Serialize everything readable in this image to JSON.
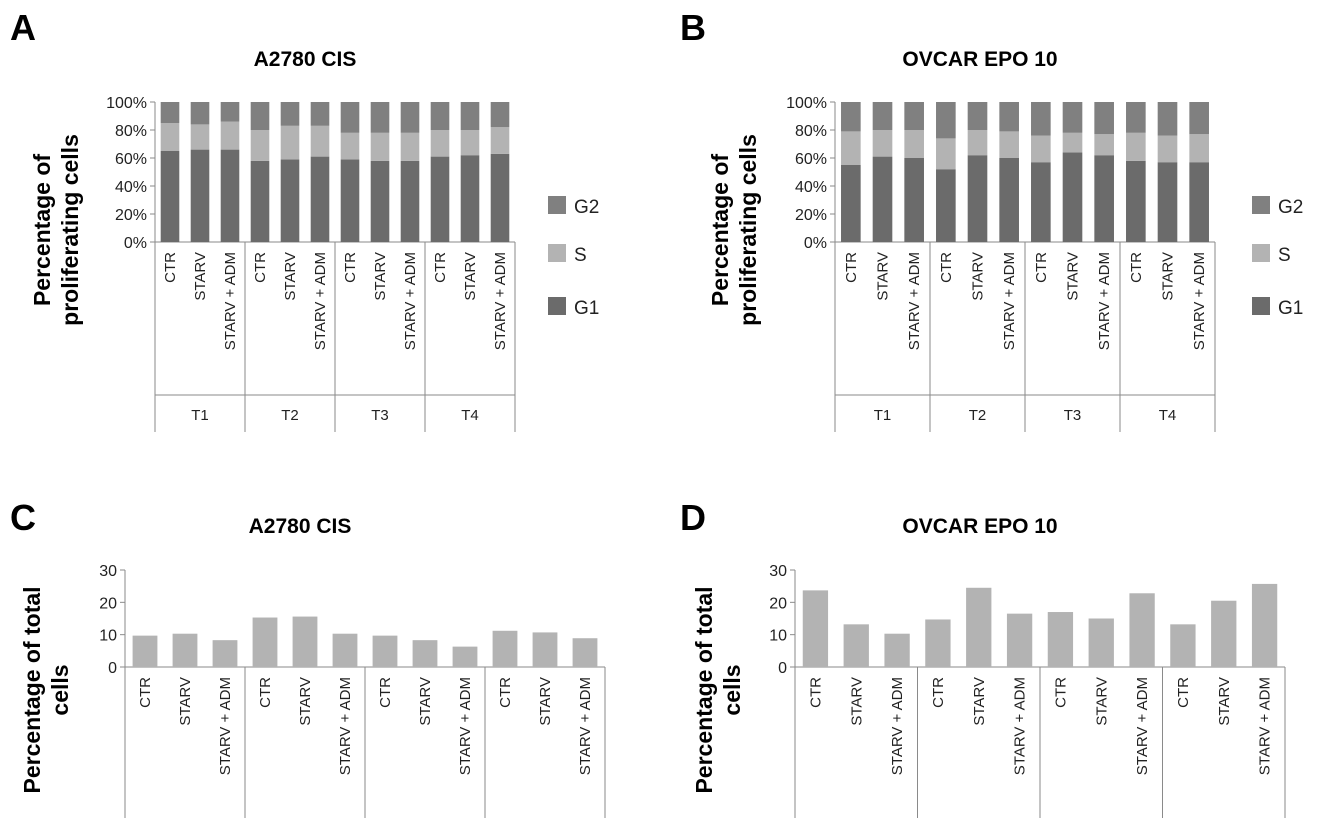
{
  "panels": [
    {
      "letter": "A"
    },
    {
      "letter": "B"
    },
    {
      "letter": "C"
    },
    {
      "letter": "D"
    }
  ],
  "colors": {
    "G1": "#6b6b6b",
    "S": "#b3b3b3",
    "G2": "#808080",
    "bar": "#b3b3b3"
  },
  "chart_data": [
    {
      "type": "bar",
      "stacked": true,
      "title": "A2780 CIS",
      "ylabel": "Percentage of proliferating cells",
      "ylim": [
        0,
        100
      ],
      "yticks": [
        "0%",
        "20%",
        "40%",
        "60%",
        "80%",
        "100%"
      ],
      "groups": [
        "T1",
        "T2",
        "T3",
        "T4"
      ],
      "categories": [
        "CTR",
        "STARV",
        "STARV + ADM",
        "CTR",
        "STARV",
        "STARV + ADM",
        "CTR",
        "STARV",
        "STARV + ADM",
        "CTR",
        "STARV",
        "STARV + ADM"
      ],
      "legend": [
        "G2",
        "S",
        "G1"
      ],
      "legend_position": "right",
      "series": [
        {
          "name": "G1",
          "values": [
            65,
            66,
            66,
            58,
            59,
            61,
            59,
            58,
            58,
            61,
            62,
            63
          ]
        },
        {
          "name": "S",
          "values": [
            20,
            18,
            20,
            22,
            24,
            22,
            19,
            20,
            20,
            19,
            18,
            19
          ]
        },
        {
          "name": "G2",
          "values": [
            15,
            16,
            14,
            20,
            17,
            17,
            22,
            22,
            22,
            20,
            20,
            18
          ]
        }
      ]
    },
    {
      "type": "bar",
      "stacked": true,
      "title": "OVCAR EPO 10",
      "ylabel": "Percentage of proliferating cells",
      "ylim": [
        0,
        100
      ],
      "yticks": [
        "0%",
        "20%",
        "40%",
        "60%",
        "80%",
        "100%"
      ],
      "groups": [
        "T1",
        "T2",
        "T3",
        "T4"
      ],
      "categories": [
        "CTR",
        "STARV",
        "STARV + ADM",
        "CTR",
        "STARV",
        "STARV + ADM",
        "CTR",
        "STARV",
        "STARV + ADM",
        "CTR",
        "STARV",
        "STARV + ADM"
      ],
      "legend": [
        "G2",
        "S",
        "G1"
      ],
      "legend_position": "right",
      "series": [
        {
          "name": "G1",
          "values": [
            55,
            61,
            60,
            52,
            62,
            60,
            57,
            64,
            62,
            58,
            57,
            57
          ]
        },
        {
          "name": "S",
          "values": [
            24,
            19,
            20,
            22,
            18,
            19,
            19,
            14,
            15,
            20,
            19,
            20
          ]
        },
        {
          "name": "G2",
          "values": [
            21,
            20,
            20,
            26,
            20,
            21,
            24,
            22,
            23,
            22,
            24,
            23
          ]
        }
      ]
    },
    {
      "type": "bar",
      "title": "A2780 CIS",
      "ylabel": "Percentage of total cells",
      "ylim": [
        0,
        30
      ],
      "yticks": [
        "0",
        "10",
        "20",
        "30"
      ],
      "categories": [
        "CTR",
        "STARV",
        "STARV + ADM",
        "CTR",
        "STARV",
        "STARV + ADM",
        "CTR",
        "STARV",
        "STARV + ADM",
        "CTR",
        "STARV",
        "STARV + ADM"
      ],
      "values": [
        9.7,
        10.3,
        8.3,
        15.3,
        15.6,
        10.3,
        9.7,
        8.3,
        6.3,
        11.2,
        10.7,
        8.9
      ]
    },
    {
      "type": "bar",
      "title": "OVCAR EPO 10",
      "ylabel": "Percentage of total cells",
      "ylim": [
        0,
        30
      ],
      "yticks": [
        "0",
        "10",
        "20",
        "30"
      ],
      "categories": [
        "CTR",
        "STARV",
        "STARV + ADM",
        "CTR",
        "STARV",
        "STARV + ADM",
        "CTR",
        "STARV",
        "STARV + ADM",
        "CTR",
        "STARV",
        "STARV + ADM"
      ],
      "values": [
        23.7,
        13.2,
        10.3,
        14.7,
        24.5,
        16.5,
        17.0,
        15.0,
        22.8,
        13.2,
        20.5,
        25.7
      ]
    }
  ]
}
